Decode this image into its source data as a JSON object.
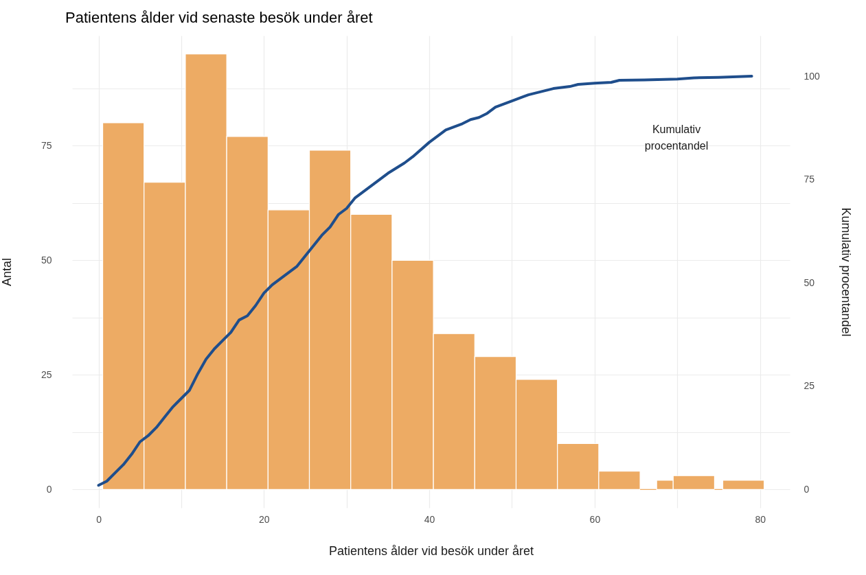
{
  "chart_data": {
    "type": "histogram",
    "title": "Patientens ålder vid senaste besök under året",
    "xlabel": "Patientens ålder vid besök under året",
    "ylabel": "Antal",
    "y2label": "Kumulativ procentandel",
    "bins": [
      0.5,
      5.5,
      10.5,
      15.5,
      20.5,
      25.5,
      30.5,
      35.5,
      40.5,
      45.5,
      50.5,
      55.5,
      60.5,
      65.5,
      67.5,
      69.5,
      74.5,
      75.5,
      80.5
    ],
    "values": [
      80,
      67,
      95,
      77,
      61,
      74,
      60,
      50,
      34,
      29,
      24,
      10,
      4,
      0,
      2,
      3,
      0,
      2
    ],
    "color": "#edab64",
    "series": [
      {
        "type": "line",
        "axis": "y2",
        "color": "#1f4e8c",
        "x": [
          0,
          1,
          2,
          3,
          4,
          5,
          6,
          7,
          8,
          9,
          10,
          11,
          12,
          13,
          14,
          15,
          16,
          17,
          18,
          19,
          20,
          21,
          22,
          23,
          24,
          25,
          26,
          27,
          28,
          29,
          30,
          31,
          32,
          34,
          35,
          37,
          38,
          40,
          42,
          44,
          45,
          46,
          47,
          48,
          50,
          52,
          53,
          55,
          57,
          58,
          60,
          62,
          63,
          66,
          70,
          72,
          75,
          79
        ],
        "values": [
          1,
          2,
          4,
          6,
          8.5,
          11.5,
          13,
          15,
          17.5,
          20,
          22,
          24,
          28,
          31.5,
          34,
          36,
          38,
          41,
          42,
          44.5,
          47.5,
          49.5,
          51,
          52.5,
          54,
          56.5,
          59,
          61.5,
          63.5,
          66.5,
          68,
          70.5,
          72,
          75,
          76.5,
          79,
          80.5,
          84,
          87,
          88.5,
          89.5,
          90,
          91,
          92.5,
          94,
          95.5,
          96,
          97,
          97.5,
          98,
          98.3,
          98.5,
          99,
          99.1,
          99.3,
          99.6,
          99.7,
          100
        ]
      }
    ],
    "annotations": [
      "Kumulativ procentandel"
    ],
    "xlim": [
      -3.2,
      83.6
    ],
    "xticks": [
      0,
      {
        "value": 10,
        "label": null
      },
      20,
      {
        "value": 30,
        "label": null
      },
      40,
      {
        "value": 50,
        "label": null
      },
      60,
      {
        "value": 70,
        "label": null
      },
      80
    ],
    "ylim": [
      -4,
      99
    ],
    "yticks": [
      0,
      {
        "value": 12.5,
        "label": null
      },
      25,
      {
        "value": 37.5,
        "label": null
      },
      50,
      {
        "value": 62.5,
        "label": null
      },
      75,
      {
        "value": 87.5,
        "label": null
      }
    ],
    "y2lim": [
      -4.44,
      109.8
    ],
    "y2ticks": [
      0,
      25,
      50,
      75,
      100
    ],
    "grid": true
  }
}
